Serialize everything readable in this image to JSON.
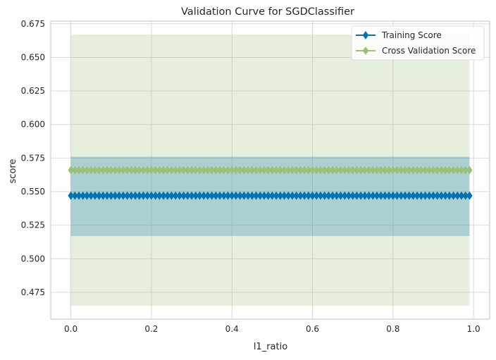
{
  "chart_data": {
    "type": "line",
    "title": "Validation Curve for SGDClassifier",
    "xlabel": "l1_ratio",
    "ylabel": "score",
    "xlim": [
      -0.05,
      1.04
    ],
    "ylim": [
      0.455,
      0.677
    ],
    "xticks": [
      "0.0",
      "0.2",
      "0.4",
      "0.6",
      "0.8",
      "1.0"
    ],
    "yticks": [
      "0.475",
      "0.500",
      "0.525",
      "0.550",
      "0.575",
      "0.600",
      "0.625",
      "0.650",
      "0.675"
    ],
    "grid": true,
    "legend_position": "top-right",
    "x_start": 0.0,
    "x_end": 0.99,
    "x_step": 0.01,
    "series": [
      {
        "name": "Training Score",
        "color": "#0072b2",
        "marker": "diamond",
        "mean": 0.547,
        "band": [
          0.517,
          0.576
        ]
      },
      {
        "name": "Cross Validation Score",
        "color": "#9bc078",
        "marker": "diamond",
        "mean": 0.566,
        "band": [
          0.465,
          0.667
        ]
      }
    ]
  }
}
